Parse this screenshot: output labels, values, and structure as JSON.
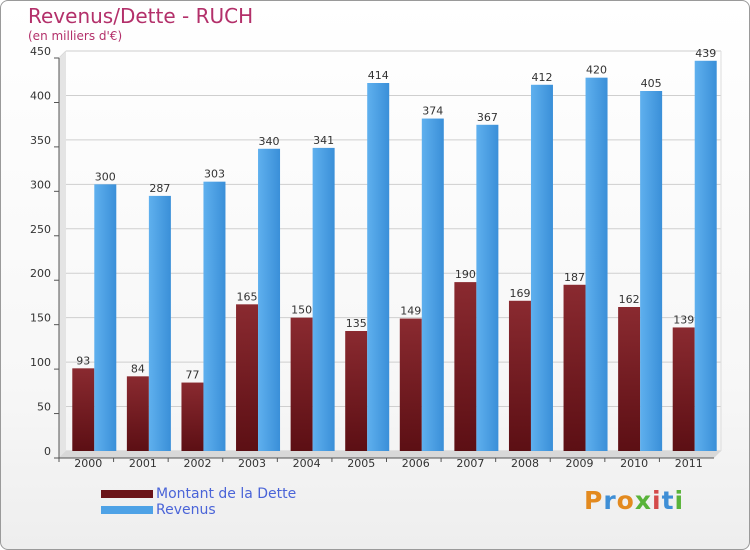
{
  "title": "Revenus/Dette - RUCH",
  "subtitle": "(en milliers d'€)",
  "colors": {
    "dette": "#7a1f24",
    "revenus": "#4ea2e6"
  },
  "legend": {
    "dette_label": "Montant de la Dette",
    "revenus_label": "Revenus"
  },
  "logo": {
    "text": "Proxiti"
  },
  "chart_data": {
    "type": "bar",
    "title": "Revenus/Dette - RUCH",
    "ylabel": "(en milliers d'€)",
    "xlabel": "",
    "categories": [
      "2000",
      "2001",
      "2002",
      "2003",
      "2004",
      "2005",
      "2006",
      "2007",
      "2008",
      "2009",
      "2010",
      "2011"
    ],
    "series": [
      {
        "name": "Montant de la Dette",
        "values": [
          93,
          84,
          77,
          165,
          150,
          135,
          149,
          190,
          169,
          187,
          162,
          139
        ]
      },
      {
        "name": "Revenus",
        "values": [
          300,
          287,
          303,
          340,
          341,
          414,
          374,
          367,
          412,
          420,
          405,
          439
        ]
      }
    ],
    "ylim": [
      0,
      450
    ],
    "yticks": [
      0,
      50,
      100,
      150,
      200,
      250,
      300,
      350,
      400,
      450
    ],
    "grid": true,
    "legend_position": "bottom-left"
  }
}
